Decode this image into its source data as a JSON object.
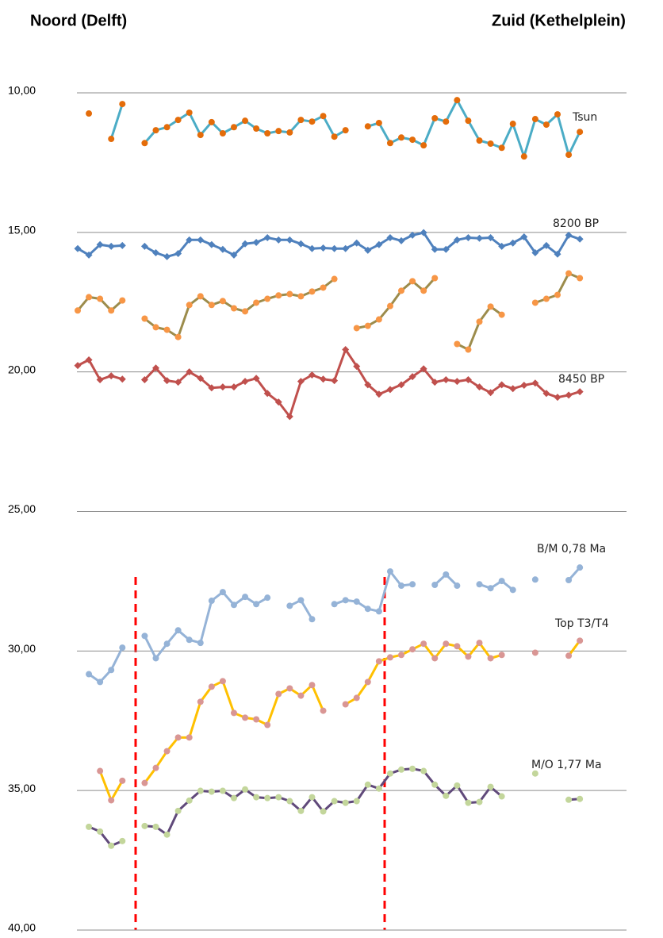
{
  "chart_data": {
    "type": "line",
    "annotations": [
      "Noord (Delft)",
      "Zuid (Kethelplein)"
    ],
    "categories": [
      null,
      null,
      null,
      null,
      null,
      null,
      null,
      null,
      null,
      null,
      null,
      null,
      null,
      null,
      null,
      null,
      null,
      null,
      null,
      null,
      null,
      null,
      null,
      null,
      null,
      null,
      null,
      null,
      null,
      null,
      null,
      null,
      null,
      null,
      null,
      null,
      null,
      null,
      null,
      null,
      null,
      null,
      null,
      null,
      null,
      null
    ],
    "ylim": [
      10,
      40
    ],
    "y_inverted": true,
    "grid": true,
    "yticks": [
      {
        "value": 10,
        "label": "10,00"
      },
      {
        "value": 15,
        "label": "15,00"
      },
      {
        "value": 20,
        "label": "20,00"
      },
      {
        "value": 25,
        "label": "25,00"
      },
      {
        "value": 30,
        "label": "30,00"
      },
      {
        "value": 35,
        "label": "35,00"
      },
      {
        "value": 40,
        "label": "40,00"
      }
    ],
    "series": [
      {
        "name": "Tsun",
        "color": "#4bacc6",
        "marker_color": "#e46c0a",
        "marker": "circle",
        "values": [
          null,
          10.74,
          null,
          11.65,
          10.4,
          null,
          11.8,
          11.34,
          11.23,
          10.97,
          10.71,
          11.51,
          11.05,
          11.45,
          11.23,
          11.0,
          11.28,
          11.45,
          11.37,
          11.42,
          10.97,
          11.03,
          10.83,
          11.57,
          11.34,
          null,
          11.2,
          11.08,
          11.8,
          11.6,
          11.68,
          11.88,
          10.91,
          11.03,
          10.26,
          11.0,
          11.71,
          11.82,
          11.97,
          11.11,
          12.28,
          10.94,
          11.14,
          10.77,
          12.22,
          11.4
        ]
      },
      {
        "name": "8200 BP",
        "color": "#4f81bd",
        "marker_color": "#4f81bd",
        "marker": "diamond",
        "values": [
          15.58,
          15.81,
          15.44,
          15.5,
          15.47,
          null,
          15.5,
          15.73,
          15.87,
          15.76,
          15.27,
          15.27,
          15.44,
          15.61,
          15.81,
          15.41,
          15.36,
          15.19,
          15.27,
          15.27,
          15.41,
          15.58,
          15.56,
          15.58,
          15.58,
          15.38,
          15.64,
          15.44,
          15.19,
          15.3,
          15.1,
          15.01,
          15.61,
          15.61,
          15.27,
          15.19,
          15.21,
          15.19,
          15.5,
          15.38,
          15.16,
          15.73,
          15.47,
          15.78,
          15.1,
          15.24
        ]
      },
      {
        "color": "#9c8c4c",
        "marker_color": "#f79646",
        "marker": "circle",
        "values": [
          17.8,
          17.32,
          17.38,
          17.8,
          17.44,
          null,
          18.09,
          18.4,
          18.49,
          18.75,
          17.6,
          17.29,
          17.6,
          17.46,
          17.72,
          17.83,
          17.52,
          17.38,
          17.26,
          17.21,
          17.29,
          17.12,
          16.98,
          16.67,
          null,
          18.43,
          18.35,
          18.12,
          17.64,
          17.09,
          16.75,
          17.09,
          16.64,
          null,
          19.0,
          19.2,
          18.2,
          17.66,
          17.95,
          null,
          null,
          17.52,
          17.38,
          17.24,
          16.47,
          16.64
        ]
      },
      {
        "name": "8450 BP",
        "color": "#c0504d",
        "marker_color": "#c0504d",
        "marker": "diamond",
        "values": [
          19.77,
          19.57,
          20.28,
          20.14,
          20.26,
          null,
          20.28,
          19.86,
          20.31,
          20.37,
          20.0,
          20.23,
          20.57,
          20.54,
          20.54,
          20.34,
          20.23,
          20.77,
          21.08,
          21.6,
          20.34,
          20.11,
          20.26,
          20.31,
          19.2,
          19.8,
          20.46,
          20.8,
          20.63,
          20.46,
          20.17,
          19.89,
          20.37,
          20.28,
          20.34,
          20.28,
          20.54,
          20.74,
          20.46,
          20.6,
          20.48,
          20.4,
          20.77,
          20.91,
          20.83,
          20.71
        ]
      },
      {
        "name": "B/M 0,78 Ma",
        "color": "#95b3d7",
        "marker_color": "#95b3d7",
        "marker": "circle",
        "values": [
          null,
          30.83,
          31.11,
          30.68,
          29.88,
          null,
          29.46,
          30.26,
          29.74,
          29.26,
          29.6,
          29.71,
          28.2,
          27.89,
          28.35,
          28.06,
          28.32,
          28.09,
          null,
          28.38,
          28.18,
          28.86,
          null,
          28.32,
          28.18,
          28.23,
          28.49,
          28.58,
          27.15,
          27.66,
          27.61,
          null,
          27.63,
          27.26,
          27.66,
          null,
          27.61,
          27.75,
          27.49,
          27.81,
          null,
          27.44,
          null,
          null,
          27.46,
          27.01
        ]
      },
      {
        "name": "Top T3/T4",
        "color": "#ffc000",
        "marker_color": "#d99694",
        "marker": "circle",
        "values": [
          null,
          null,
          34.3,
          35.35,
          34.65,
          null,
          34.73,
          34.19,
          33.59,
          33.1,
          33.1,
          31.82,
          31.28,
          31.08,
          32.22,
          32.39,
          32.45,
          32.65,
          31.54,
          31.34,
          31.6,
          31.22,
          32.14,
          null,
          31.91,
          31.68,
          31.11,
          30.37,
          30.23,
          30.14,
          29.94,
          29.74,
          30.26,
          29.74,
          29.83,
          30.2,
          29.71,
          30.26,
          30.14,
          null,
          null,
          30.06,
          null,
          null,
          30.17,
          29.63
        ]
      },
      {
        "name": "M/O 1,77 Ma",
        "color": "#60497a",
        "marker_color": "#c3d69b",
        "marker": "circle",
        "values": [
          null,
          36.3,
          36.47,
          36.98,
          36.81,
          null,
          36.27,
          36.3,
          36.58,
          35.73,
          35.36,
          35.01,
          35.04,
          35.01,
          35.27,
          34.96,
          35.24,
          35.27,
          35.24,
          35.38,
          35.73,
          35.24,
          35.75,
          35.38,
          35.44,
          35.38,
          34.79,
          34.93,
          34.39,
          34.25,
          34.22,
          34.3,
          34.79,
          35.19,
          34.82,
          35.44,
          35.41,
          34.87,
          35.21,
          null,
          null,
          34.39,
          null,
          null,
          35.33,
          35.3
        ]
      }
    ]
  }
}
